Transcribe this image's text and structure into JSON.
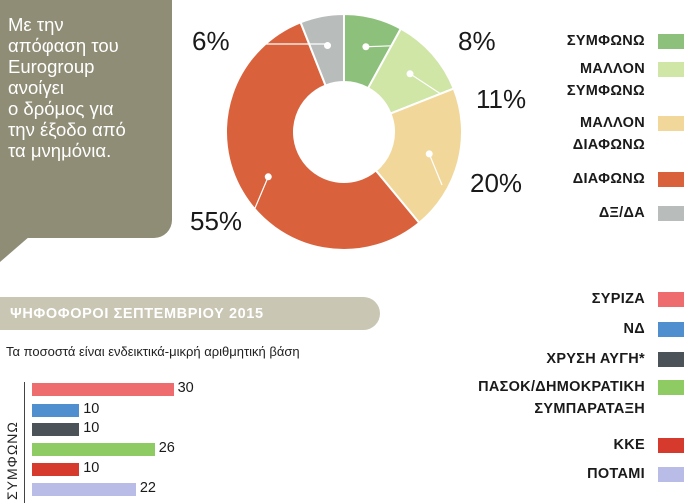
{
  "callout": {
    "lines": [
      "Με την",
      "απόφαση του",
      "Eurogroup",
      "ανοίγει",
      "ο δρόμος για",
      "την έξοδο από",
      "τα μνημόνια."
    ]
  },
  "chart_data": [
    {
      "type": "pie",
      "donut": true,
      "categories": [
        "ΣΥΜΦΩΝΩ",
        "ΜΑΛΛΟΝ ΣΥΜΦΩΝΩ",
        "ΜΑΛΛΟΝ ΔΙΑΦΩΝΩ",
        "ΔΙΑΦΩΝΩ",
        "ΔΞ/ΔΑ"
      ],
      "values": [
        8,
        11,
        20,
        55,
        6
      ],
      "value_labels": [
        "8%",
        "11%",
        "20%",
        "55%",
        "6%"
      ],
      "colors": [
        "#8dc07b",
        "#cfe6a6",
        "#f1d79a",
        "#d9623d",
        "#b8bdbb"
      ],
      "legend_lines": [
        [
          "ΣΥΜΦΩΝΩ"
        ],
        [
          "ΜΑΛΛΟΝ",
          "ΣΥΜΦΩΝΩ"
        ],
        [
          "ΜΑΛΛΟΝ",
          "ΔΙΑΦΩΝΩ"
        ],
        [
          "ΔΙΑΦΩΝΩ"
        ],
        [
          "ΔΞ/ΔΑ"
        ]
      ],
      "legend_position": "right"
    },
    {
      "type": "bar",
      "orientation": "horizontal",
      "title": "ΨΗΦΟΦΟΡΟΙ ΣΕΠΤΕΜΒΡΙΟΥ 2015",
      "note": "Τα ποσοστά είναι ενδεικτικά-μικρή αριθμητική βάση",
      "group_label": "ΣΥΜΦΩΝΩ",
      "categories": [
        "ΣΥΡΙΖΑ",
        "ΝΔ",
        "ΧΡΥΣΗ ΑΥΓΗ*",
        "ΠΑΣΟΚ/ΔΗΜΟΚΡΑΤΙΚΗ ΣΥΜΠΑΡΑΤΑΞΗ",
        "ΚΚΕ",
        "ΠΟΤΑΜΙ"
      ],
      "legend_lines": [
        [
          "ΣΥΡΙΖΑ"
        ],
        [
          "ΝΔ"
        ],
        [
          "ΧΡΥΣΗ ΑΥΓΗ*"
        ],
        [
          "ΠΑΣΟΚ/ΔΗΜΟΚΡΑΤΙΚΗ",
          "ΣΥΜΠΑΡΑΤΑΞΗ"
        ],
        [
          "ΚΚΕ"
        ],
        [
          "ΠΟΤΑΜΙ"
        ]
      ],
      "values": [
        30,
        10,
        10,
        26,
        10,
        22
      ],
      "colors": [
        "#ee6b6e",
        "#4f8fd0",
        "#4b5358",
        "#8ecb63",
        "#d63a2c",
        "#b9bce6"
      ],
      "legend_position": "right"
    }
  ]
}
